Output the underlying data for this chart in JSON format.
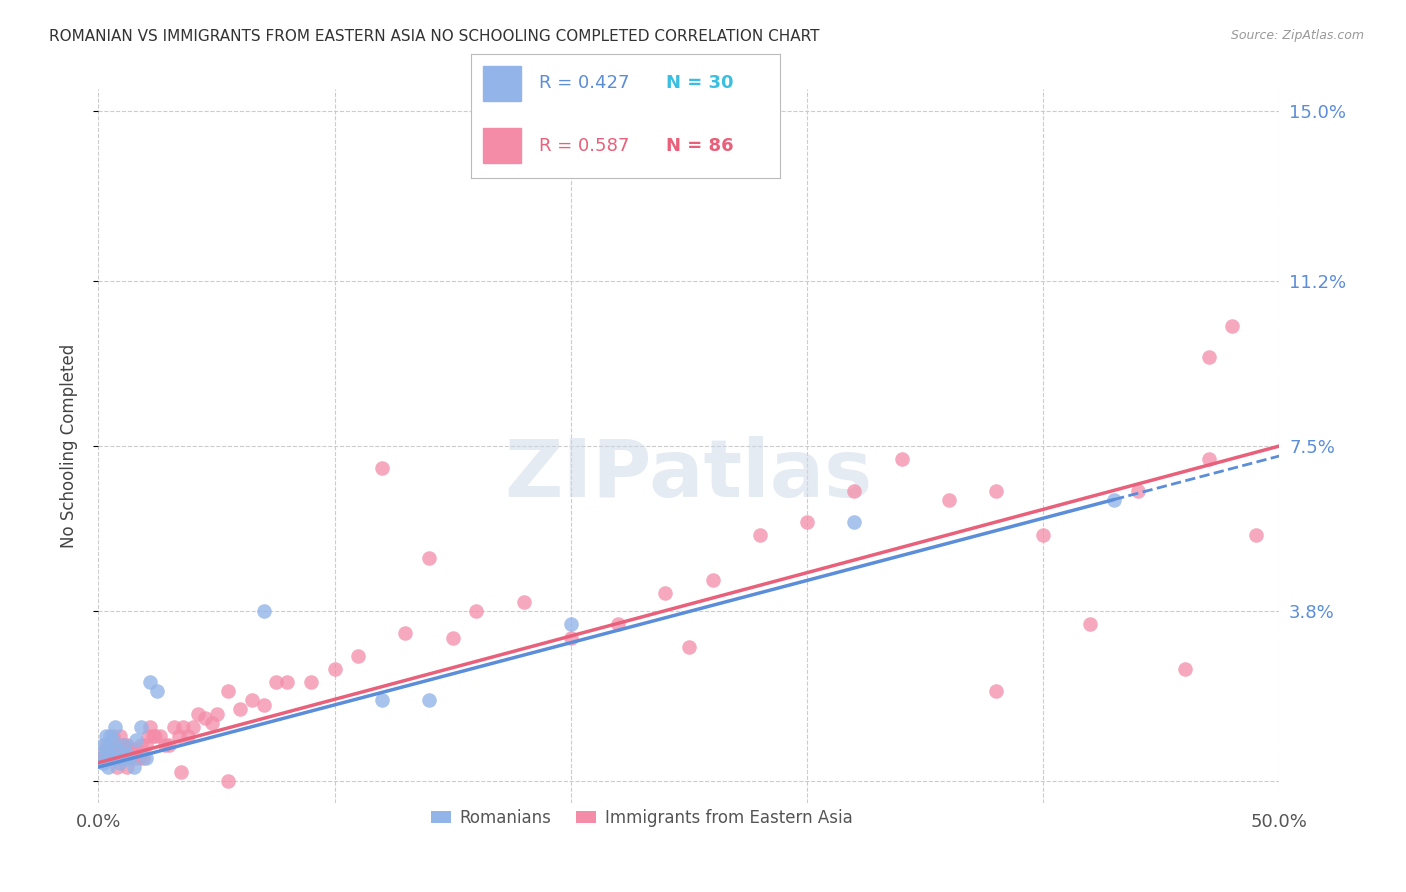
{
  "title": "ROMANIAN VS IMMIGRANTS FROM EASTERN ASIA NO SCHOOLING COMPLETED CORRELATION CHART",
  "source": "Source: ZipAtlas.com",
  "ylabel": "No Schooling Completed",
  "xlim": [
    0.0,
    0.5
  ],
  "ylim": [
    -0.005,
    0.155
  ],
  "ytick_positions": [
    0.0,
    0.038,
    0.075,
    0.112,
    0.15
  ],
  "xtick_positions": [
    0.0,
    0.1,
    0.2,
    0.3,
    0.4,
    0.5
  ],
  "right_ytick_labels": [
    "",
    "3.8%",
    "7.5%",
    "11.2%",
    "15.0%"
  ],
  "xtick_labels": [
    "0.0%",
    "",
    "",
    "",
    "",
    "50.0%"
  ],
  "legend_r1": "R = 0.427",
  "legend_n1": "N = 30",
  "legend_r2": "R = 0.587",
  "legend_n2": "N = 86",
  "color_romanians": "#92b4e8",
  "color_eastern_asia": "#f48ca8",
  "color_line_romanians": "#5b8dd9",
  "color_line_eastern_asia": "#e8607a",
  "color_right_axis": "#5b8dd9",
  "color_legend_r": "#5b8dd9",
  "color_legend_n": "#3bbfe0",
  "color_legend_r2": "#e8607a",
  "color_legend_n2": "#e8607a",
  "line_rom_x0": 0.0,
  "line_rom_y0": 0.003,
  "line_rom_x1": 0.43,
  "line_rom_y1": 0.063,
  "line_ea_x0": 0.0,
  "line_ea_y0": 0.004,
  "line_ea_x1": 0.5,
  "line_ea_y1": 0.075,
  "romanians_x": [
    0.001,
    0.002,
    0.002,
    0.003,
    0.003,
    0.004,
    0.004,
    0.005,
    0.005,
    0.006,
    0.006,
    0.007,
    0.008,
    0.009,
    0.01,
    0.011,
    0.012,
    0.013,
    0.015,
    0.016,
    0.018,
    0.02,
    0.022,
    0.025,
    0.07,
    0.12,
    0.14,
    0.2,
    0.32,
    0.43
  ],
  "romanians_y": [
    0.005,
    0.008,
    0.004,
    0.007,
    0.01,
    0.005,
    0.003,
    0.006,
    0.01,
    0.005,
    0.009,
    0.012,
    0.007,
    0.004,
    0.005,
    0.008,
    0.006,
    0.005,
    0.003,
    0.009,
    0.012,
    0.005,
    0.022,
    0.02,
    0.038,
    0.018,
    0.018,
    0.035,
    0.058,
    0.063
  ],
  "eastern_asia_x": [
    0.001,
    0.002,
    0.002,
    0.003,
    0.003,
    0.004,
    0.004,
    0.005,
    0.005,
    0.006,
    0.006,
    0.007,
    0.007,
    0.008,
    0.008,
    0.009,
    0.009,
    0.01,
    0.01,
    0.011,
    0.012,
    0.013,
    0.014,
    0.015,
    0.015,
    0.016,
    0.017,
    0.018,
    0.019,
    0.02,
    0.021,
    0.022,
    0.023,
    0.024,
    0.026,
    0.028,
    0.03,
    0.032,
    0.034,
    0.036,
    0.038,
    0.04,
    0.042,
    0.045,
    0.048,
    0.05,
    0.055,
    0.06,
    0.065,
    0.07,
    0.075,
    0.08,
    0.09,
    0.1,
    0.11,
    0.12,
    0.13,
    0.14,
    0.16,
    0.18,
    0.2,
    0.22,
    0.24,
    0.26,
    0.28,
    0.3,
    0.32,
    0.34,
    0.36,
    0.38,
    0.4,
    0.42,
    0.44,
    0.46,
    0.47,
    0.47,
    0.48,
    0.49,
    0.15,
    0.25,
    0.005,
    0.008,
    0.012,
    0.035,
    0.055,
    0.38
  ],
  "eastern_asia_y": [
    0.005,
    0.005,
    0.006,
    0.005,
    0.008,
    0.006,
    0.007,
    0.005,
    0.006,
    0.007,
    0.01,
    0.005,
    0.006,
    0.007,
    0.005,
    0.006,
    0.01,
    0.008,
    0.005,
    0.008,
    0.008,
    0.006,
    0.007,
    0.005,
    0.006,
    0.007,
    0.005,
    0.008,
    0.005,
    0.008,
    0.01,
    0.012,
    0.01,
    0.01,
    0.01,
    0.008,
    0.008,
    0.012,
    0.01,
    0.012,
    0.01,
    0.012,
    0.015,
    0.014,
    0.013,
    0.015,
    0.02,
    0.016,
    0.018,
    0.017,
    0.022,
    0.022,
    0.022,
    0.025,
    0.028,
    0.07,
    0.033,
    0.05,
    0.038,
    0.04,
    0.032,
    0.035,
    0.042,
    0.045,
    0.055,
    0.058,
    0.065,
    0.072,
    0.063,
    0.065,
    0.055,
    0.035,
    0.065,
    0.025,
    0.095,
    0.072,
    0.102,
    0.055,
    0.032,
    0.03,
    0.005,
    0.003,
    0.003,
    0.002,
    0.0,
    0.02
  ]
}
